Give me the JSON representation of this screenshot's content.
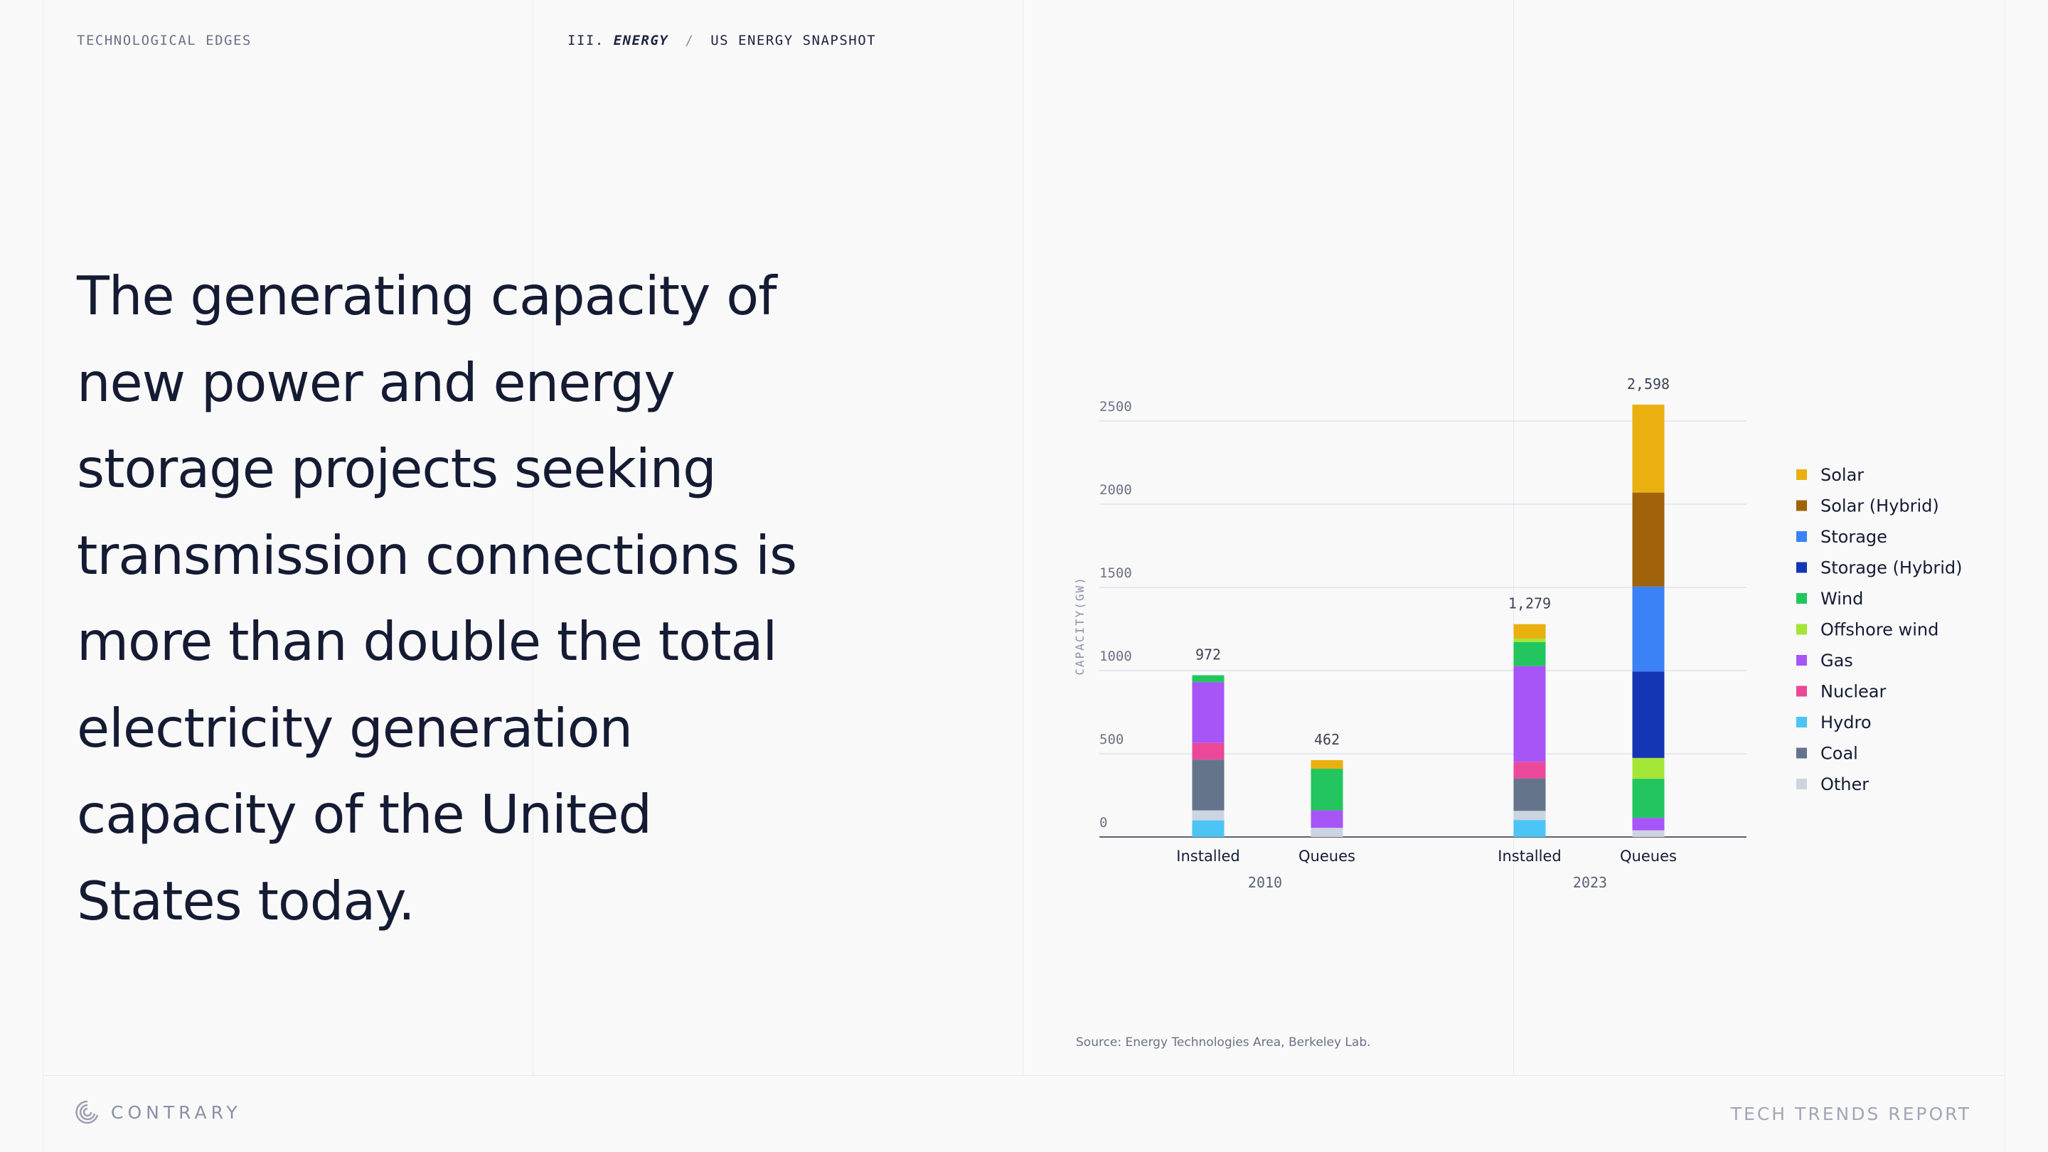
{
  "header": {
    "section_label": "TECHNOLOGICAL EDGES",
    "breadcrumb_prefix": "III.",
    "breadcrumb_chapter": "ENERGY",
    "breadcrumb_separator": "/",
    "breadcrumb_page": "US ENERGY SNAPSHOT"
  },
  "headline": "The generating capacity of new power and energy storage projects seeking transmission connections is more than double the total electricity generation capacity of the United States today.",
  "source": "Source: Energy Technologies Area, Berkeley Lab.",
  "footer": {
    "brand": "CONTRARY",
    "report": "TECH TRENDS REPORT"
  },
  "colors": {
    "Solar": "#e9b00f",
    "Solar (Hybrid)": "#a0620a",
    "Storage": "#3b82f6",
    "Storage (Hybrid)": "#1536b4",
    "Wind": "#22c55e",
    "Offshore wind": "#a3e635",
    "Gas": "#a855f7",
    "Nuclear": "#ec4899",
    "Hydro": "#4cc4f5",
    "Coal": "#64748b",
    "Other": "#cbd5e1"
  },
  "chart_data": {
    "type": "bar",
    "stacked": true,
    "ylabel": "CAPACITY(GW)",
    "ylim": [
      0,
      2500
    ],
    "yticks": [
      0,
      500,
      1000,
      1500,
      2000,
      2500
    ],
    "grid": true,
    "legend_position": "right",
    "legend": [
      "Solar",
      "Solar (Hybrid)",
      "Storage",
      "Storage (Hybrid)",
      "Wind",
      "Offshore wind",
      "Gas",
      "Nuclear",
      "Hydro",
      "Coal",
      "Other"
    ],
    "groups": [
      {
        "label": "2010",
        "bars": [
          {
            "category": "Installed",
            "total_label": "972",
            "segments": [
              {
                "name": "Hydro",
                "value": 100
              },
              {
                "name": "Other",
                "value": 60
              },
              {
                "name": "Coal",
                "value": 305
              },
              {
                "name": "Nuclear",
                "value": 100
              },
              {
                "name": "Gas",
                "value": 365
              },
              {
                "name": "Wind",
                "value": 42
              }
            ]
          },
          {
            "category": "Queues",
            "total_label": "462",
            "segments": [
              {
                "name": "Other",
                "value": 55
              },
              {
                "name": "Gas",
                "value": 105
              },
              {
                "name": "Wind",
                "value": 250
              },
              {
                "name": "Solar",
                "value": 52
              }
            ]
          }
        ]
      },
      {
        "label": "2023",
        "bars": [
          {
            "category": "Installed",
            "total_label": "1,279",
            "segments": [
              {
                "name": "Hydro",
                "value": 102
              },
              {
                "name": "Other",
                "value": 55
              },
              {
                "name": "Coal",
                "value": 195
              },
              {
                "name": "Nuclear",
                "value": 100
              },
              {
                "name": "Gas",
                "value": 575
              },
              {
                "name": "Wind",
                "value": 145
              },
              {
                "name": "Offshore wind",
                "value": 20
              },
              {
                "name": "Solar",
                "value": 87
              }
            ]
          },
          {
            "category": "Queues",
            "total_label": "2,598",
            "segments": [
              {
                "name": "Other",
                "value": 40
              },
              {
                "name": "Gas",
                "value": 75
              },
              {
                "name": "Wind",
                "value": 235
              },
              {
                "name": "Offshore wind",
                "value": 125
              },
              {
                "name": "Storage (Hybrid)",
                "value": 520
              },
              {
                "name": "Storage",
                "value": 510
              },
              {
                "name": "Solar (Hybrid)",
                "value": 565
              },
              {
                "name": "Solar",
                "value": 528
              }
            ]
          }
        ]
      }
    ]
  }
}
